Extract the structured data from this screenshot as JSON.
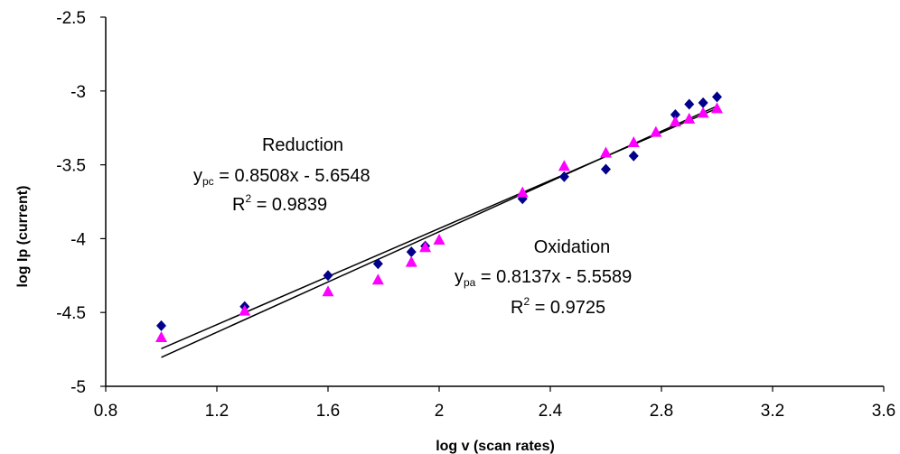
{
  "chart_data": {
    "type": "scatter",
    "title": "",
    "xlabel": "log v (scan rates)",
    "ylabel": "log Ip (current)",
    "xlim": [
      0.8,
      3.6
    ],
    "ylim": [
      -5,
      -2.5
    ],
    "x_ticks": [
      "0.8",
      "1.2",
      "1.6",
      "2",
      "2.4",
      "2.8",
      "3.2",
      "3.6"
    ],
    "y_ticks": [
      "-5",
      "-4.5",
      "-4",
      "-3.5",
      "-3",
      "-2.5"
    ],
    "grid": false,
    "series": [
      {
        "name": "",
        "marker": "diamond",
        "color": "#00008b",
        "x": [
          1.0,
          1.3,
          1.6,
          1.78,
          1.9,
          1.95,
          2.3,
          2.45,
          2.6,
          2.7,
          2.85,
          2.9,
          2.95,
          3.0
        ],
        "y": [
          -4.59,
          -4.46,
          -4.25,
          -4.17,
          -4.09,
          -4.05,
          -3.73,
          -3.58,
          -3.53,
          -3.44,
          -3.16,
          -3.09,
          -3.08,
          -3.04
        ]
      },
      {
        "name": "",
        "marker": "triangle",
        "color": "#ff00ff",
        "x": [
          1.0,
          1.3,
          1.6,
          1.78,
          1.9,
          1.95,
          2.0,
          2.3,
          2.45,
          2.6,
          2.7,
          2.78,
          2.85,
          2.9,
          2.95,
          3.0
        ],
        "y": [
          -4.67,
          -4.49,
          -4.36,
          -4.28,
          -4.16,
          -4.06,
          -4.01,
          -3.69,
          -3.51,
          -3.42,
          -3.35,
          -3.28,
          -3.21,
          -3.19,
          -3.15,
          -3.12
        ]
      }
    ],
    "trendlines": [
      {
        "slope": 0.8508,
        "intercept": -5.6548,
        "x_range": [
          1.0,
          3.0
        ]
      },
      {
        "slope": 0.8137,
        "intercept": -5.5589,
        "x_range": [
          1.0,
          3.0
        ]
      }
    ],
    "annotations": {
      "reduction": {
        "label": "Reduction",
        "eq_lhs": "y",
        "eq_sub": "pc",
        "eq_rhs": " = 0.8508x - 5.6548",
        "r2_lhs": "R",
        "r2_sup": "2",
        "r2_rhs": " = 0.9839"
      },
      "oxidation": {
        "label": "Oxidation",
        "eq_lhs": "y",
        "eq_sub": "pa",
        "eq_rhs": " = 0.8137x - 5.5589",
        "r2_lhs": "R",
        "r2_sup": "2",
        "r2_rhs": " = 0.9725"
      }
    }
  }
}
